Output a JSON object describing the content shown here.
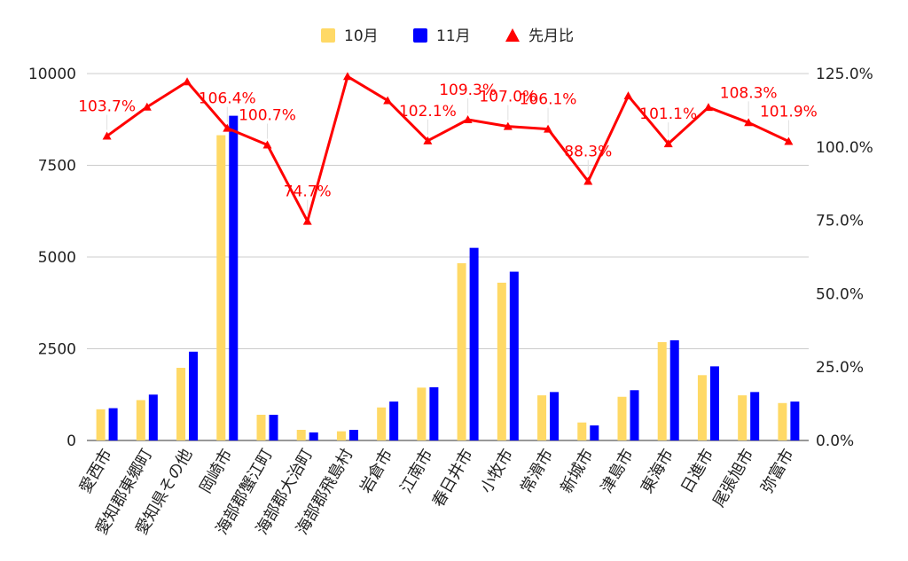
{
  "chart_data": {
    "type": "bar",
    "categories": [
      "愛西市",
      "愛知郡東郷町",
      "愛知県その他",
      "岡崎市",
      "海部郡蟹江町",
      "海部郡大治町",
      "海部郡飛島村",
      "岩倉市",
      "江南市",
      "春日井市",
      "小牧市",
      "常滑市",
      "新城市",
      "津島市",
      "東海市",
      "日進市",
      "尾張旭市",
      "弥富市"
    ],
    "series": [
      {
        "name": "10月",
        "color": "#ffd966",
        "axis": "left",
        "values": [
          850,
          1100,
          1980,
          8320,
          700,
          290,
          250,
          900,
          1440,
          4830,
          4300,
          1230,
          490,
          1190,
          2680,
          1780,
          1230,
          1020
        ]
      },
      {
        "name": "11月",
        "color": "#0000ff",
        "axis": "left",
        "values": [
          880,
          1250,
          2420,
          8850,
          700,
          220,
          290,
          1060,
          1450,
          5250,
          4600,
          1320,
          410,
          1370,
          2730,
          2020,
          1320,
          1060
        ]
      },
      {
        "name": "先月比",
        "color": "#ff0000",
        "axis": "right",
        "type": "line",
        "values": [
          103.7,
          113.6,
          122.2,
          106.4,
          100.7,
          74.7,
          124.0,
          115.8,
          102.1,
          109.3,
          107.0,
          106.1,
          88.3,
          117.4,
          101.1,
          113.5,
          108.3,
          101.9
        ],
        "labels": [
          "103.7%",
          "",
          "",
          "106.4%",
          "100.7%",
          "74.7%",
          "",
          "",
          "102.1%",
          "109.3%",
          "107.0%",
          "106.1%",
          "88.3%",
          "",
          "101.1%",
          "",
          "108.3%",
          "101.9%"
        ]
      }
    ],
    "yLeft": {
      "min": 0,
      "max": 10000,
      "ticks": [
        "0",
        "2500",
        "5000",
        "7500",
        "10000"
      ]
    },
    "yRight": {
      "min": 0,
      "max": 125,
      "ticks": [
        "0.0%",
        "25.0%",
        "50.0%",
        "75.0%",
        "100.0%",
        "125.0%"
      ]
    },
    "grid": true,
    "legend": "top"
  }
}
